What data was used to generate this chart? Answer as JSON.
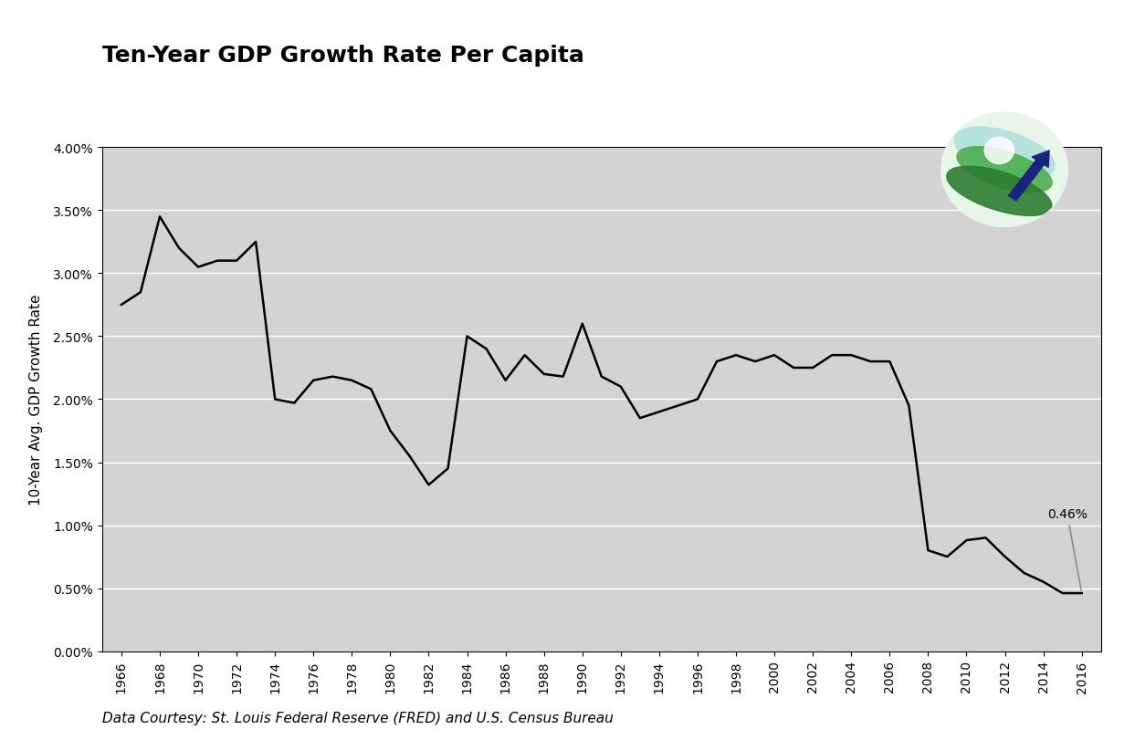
{
  "title": "Ten-Year GDP Growth Rate Per Capita",
  "ylabel": "10-Year Avg. GDP Growth Rate",
  "caption": "Data Courtesy: St. Louis Federal Reserve (FRED) and U.S. Census Bureau",
  "annotation": "0.46%",
  "fig_bg_color": "#ffffff",
  "plot_bg_color": "#d3d3d3",
  "line_color": "#000000",
  "years": [
    1966,
    1967,
    1968,
    1969,
    1970,
    1971,
    1972,
    1973,
    1974,
    1975,
    1976,
    1977,
    1978,
    1979,
    1980,
    1981,
    1982,
    1983,
    1984,
    1985,
    1986,
    1987,
    1988,
    1989,
    1990,
    1991,
    1992,
    1993,
    1994,
    1995,
    1996,
    1997,
    1998,
    1999,
    2000,
    2001,
    2002,
    2003,
    2004,
    2005,
    2006,
    2007,
    2008,
    2009,
    2010,
    2011,
    2012,
    2013,
    2014,
    2015,
    2016
  ],
  "values": [
    0.0275,
    0.0285,
    0.0345,
    0.032,
    0.0305,
    0.031,
    0.031,
    0.0325,
    0.02,
    0.0197,
    0.0215,
    0.0218,
    0.0215,
    0.0208,
    0.0175,
    0.0155,
    0.0132,
    0.0145,
    0.025,
    0.024,
    0.0215,
    0.0235,
    0.022,
    0.0218,
    0.026,
    0.0218,
    0.021,
    0.0185,
    0.019,
    0.0195,
    0.02,
    0.023,
    0.0235,
    0.023,
    0.0235,
    0.0225,
    0.0225,
    0.0235,
    0.0235,
    0.023,
    0.023,
    0.0195,
    0.008,
    0.0075,
    0.0088,
    0.009,
    0.0075,
    0.0062,
    0.0055,
    0.0046,
    0.0046
  ],
  "ylim": [
    0.0,
    0.04
  ],
  "yticks": [
    0.0,
    0.005,
    0.01,
    0.015,
    0.02,
    0.025,
    0.03,
    0.035,
    0.04
  ],
  "ytick_labels": [
    "0.00%",
    "0.50%",
    "1.00%",
    "1.50%",
    "2.00%",
    "2.50%",
    "3.00%",
    "3.50%",
    "4.00%"
  ],
  "title_fontsize": 18,
  "axis_label_fontsize": 11,
  "tick_fontsize": 10,
  "caption_fontsize": 11
}
